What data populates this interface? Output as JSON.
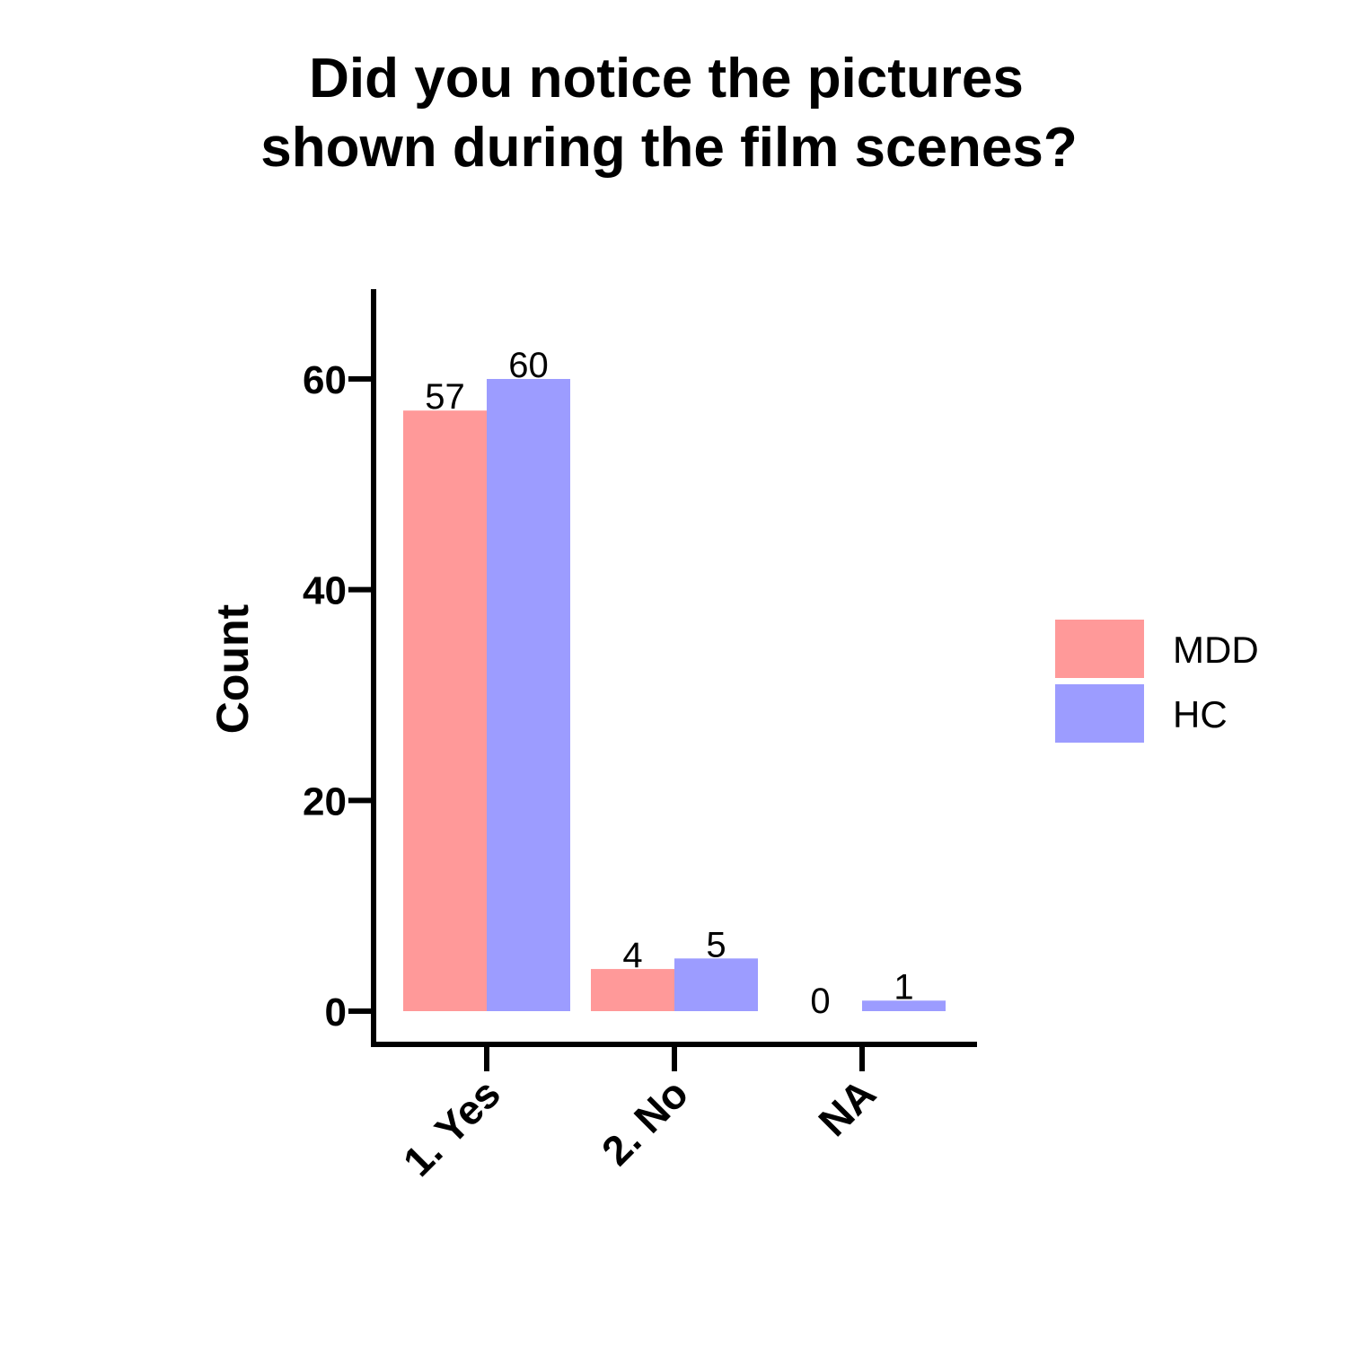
{
  "chart_data": {
    "type": "bar",
    "title": [
      "Did you notice the pictures",
      "shown during the film scenes?"
    ],
    "ylabel": "Count",
    "categories": [
      "1. Yes",
      "2. No",
      "NA"
    ],
    "series": [
      {
        "name": "MDD",
        "values": [
          57,
          4,
          0
        ],
        "color": "#ff9999"
      },
      {
        "name": "HC",
        "values": [
          60,
          5,
          1
        ],
        "color": "#9c9cff"
      }
    ],
    "ylim": [
      0,
      68
    ],
    "yticks": [
      0,
      20,
      40,
      60
    ],
    "grid": false,
    "legend_position": "right"
  }
}
